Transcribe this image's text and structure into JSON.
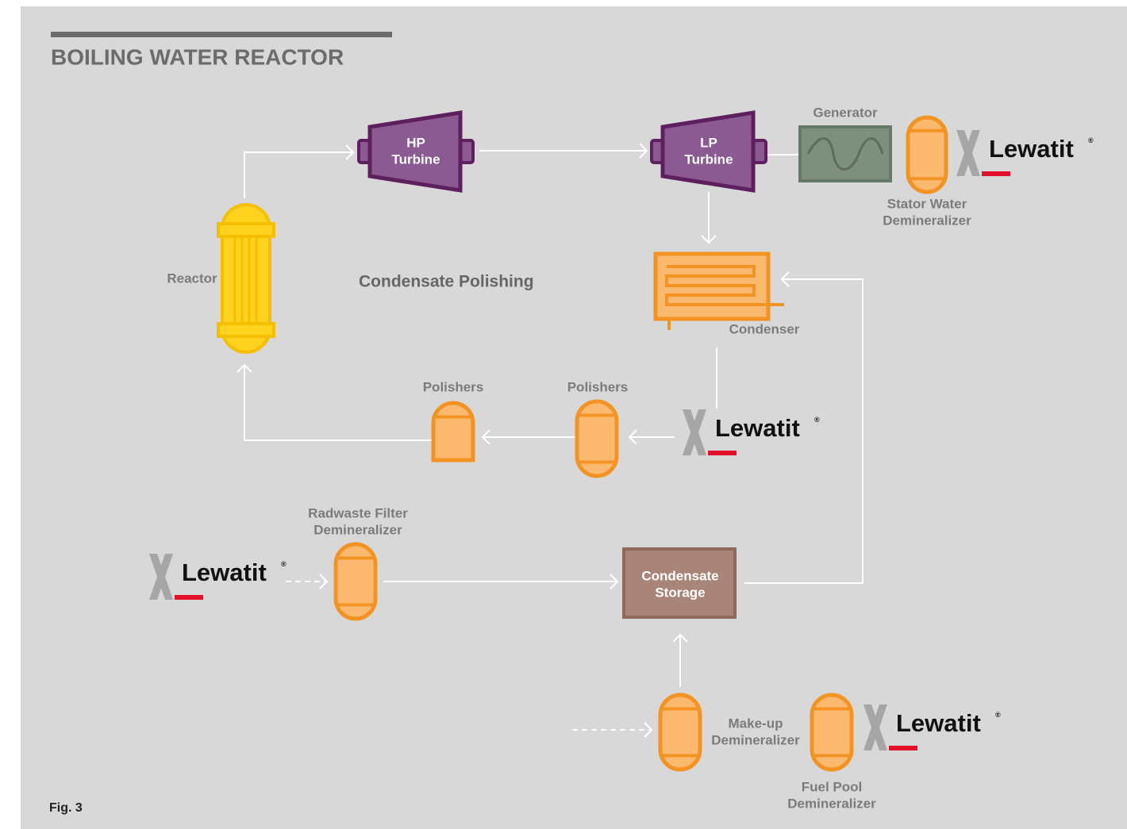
{
  "title": "BOILING WATER REACTOR",
  "section": "Condensate Polishing",
  "figure": "Fig. 3",
  "nodes": {
    "hp_turbine": {
      "label": [
        "HP",
        "Turbine"
      ]
    },
    "lp_turbine": {
      "label": [
        "LP",
        "Turbine"
      ]
    },
    "generator": {
      "label": [
        "Generator"
      ]
    },
    "stator": {
      "label": [
        "Stator Water",
        "Demineralizer"
      ]
    },
    "reactor": {
      "label": [
        "Reactor"
      ]
    },
    "condenser": {
      "label": [
        "Condenser"
      ]
    },
    "polishers_1": {
      "label": [
        "Polishers"
      ]
    },
    "polishers_2": {
      "label": [
        "Polishers"
      ]
    },
    "radwaste": {
      "label": [
        "Radwaste Filter",
        "Demineralizer"
      ]
    },
    "storage": {
      "label": [
        "Condensate",
        "Storage"
      ]
    },
    "makeup": {
      "label": [
        "Make-up",
        "Demineralizer"
      ]
    },
    "fuel_pool": {
      "label": [
        "Fuel Pool",
        "Demineralizer"
      ]
    }
  },
  "logos": [
    {
      "text": "Lewatit",
      "mark": "®"
    },
    {
      "text": "Lewatit",
      "mark": "®"
    },
    {
      "text": "Lewatit",
      "mark": "®"
    },
    {
      "text": "Lewatit",
      "mark": "®"
    }
  ]
}
